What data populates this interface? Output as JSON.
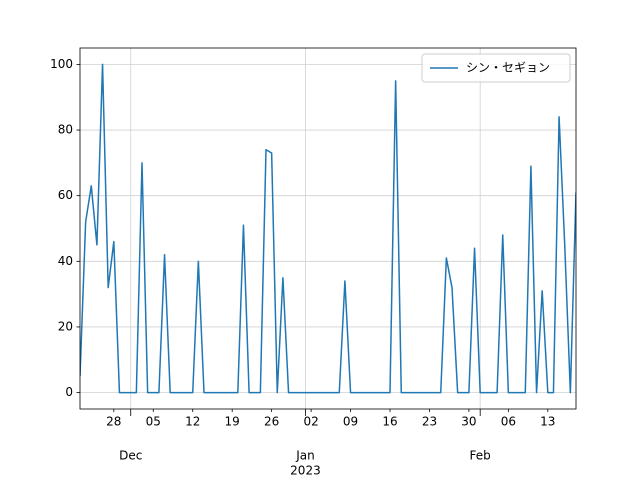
{
  "chart_data": {
    "type": "line",
    "x": [
      "2022-11-22",
      "2022-11-23",
      "2022-11-24",
      "2022-11-25",
      "2022-11-26",
      "2022-11-27",
      "2022-11-28",
      "2022-11-29",
      "2022-11-30",
      "2022-12-01",
      "2022-12-02",
      "2022-12-03",
      "2022-12-04",
      "2022-12-05",
      "2022-12-06",
      "2022-12-07",
      "2022-12-08",
      "2022-12-09",
      "2022-12-10",
      "2022-12-11",
      "2022-12-12",
      "2022-12-13",
      "2022-12-14",
      "2022-12-15",
      "2022-12-16",
      "2022-12-17",
      "2022-12-18",
      "2022-12-19",
      "2022-12-20",
      "2022-12-21",
      "2022-12-22",
      "2022-12-23",
      "2022-12-24",
      "2022-12-25",
      "2022-12-26",
      "2022-12-27",
      "2022-12-28",
      "2022-12-29",
      "2022-12-30",
      "2022-12-31",
      "2023-01-01",
      "2023-01-02",
      "2023-01-03",
      "2023-01-04",
      "2023-01-05",
      "2023-01-06",
      "2023-01-07",
      "2023-01-08",
      "2023-01-09",
      "2023-01-10",
      "2023-01-11",
      "2023-01-12",
      "2023-01-13",
      "2023-01-14",
      "2023-01-15",
      "2023-01-16",
      "2023-01-17",
      "2023-01-18",
      "2023-01-19",
      "2023-01-20",
      "2023-01-21",
      "2023-01-22",
      "2023-01-23",
      "2023-01-24",
      "2023-01-25",
      "2023-01-26",
      "2023-01-27",
      "2023-01-28",
      "2023-01-29",
      "2023-01-30",
      "2023-01-31",
      "2023-02-01",
      "2023-02-02",
      "2023-02-03",
      "2023-02-04",
      "2023-02-05",
      "2023-02-06",
      "2023-02-07",
      "2023-02-08",
      "2023-02-09",
      "2023-02-10",
      "2023-02-11",
      "2023-02-12",
      "2023-02-13",
      "2023-02-14",
      "2023-02-15",
      "2023-02-16",
      "2023-02-17",
      "2023-02-18"
    ],
    "series": [
      {
        "name": "シン・セギョン",
        "color": "#1f77b4",
        "values": [
          5,
          52,
          63,
          45,
          100,
          32,
          46,
          0,
          0,
          0,
          0,
          70,
          0,
          0,
          0,
          42,
          0,
          0,
          0,
          0,
          0,
          40,
          0,
          0,
          0,
          0,
          0,
          0,
          0,
          51,
          0,
          0,
          0,
          74,
          73,
          0,
          35,
          0,
          0,
          0,
          0,
          0,
          0,
          0,
          0,
          0,
          0,
          34,
          0,
          0,
          0,
          0,
          0,
          0,
          0,
          0,
          95,
          0,
          0,
          0,
          0,
          0,
          0,
          0,
          0,
          41,
          32,
          0,
          0,
          0,
          44,
          0,
          0,
          0,
          0,
          48,
          0,
          0,
          0,
          0,
          69,
          0,
          31,
          0,
          0,
          84,
          45,
          0,
          61
        ]
      }
    ],
    "xlim": [
      "2022-11-22",
      "2023-02-18"
    ],
    "xticks": [
      {
        "value": "2022-11-28",
        "label": "28"
      },
      {
        "value": "2022-12-05",
        "label": "05"
      },
      {
        "value": "2022-12-12",
        "label": "12"
      },
      {
        "value": "2022-12-19",
        "label": "19"
      },
      {
        "value": "2022-12-26",
        "label": "26"
      },
      {
        "value": "2023-01-02",
        "label": "02"
      },
      {
        "value": "2023-01-09",
        "label": "09"
      },
      {
        "value": "2023-01-16",
        "label": "16"
      },
      {
        "value": "2023-01-23",
        "label": "23"
      },
      {
        "value": "2023-01-30",
        "label": "30"
      },
      {
        "value": "2023-02-06",
        "label": "06"
      },
      {
        "value": "2023-02-13",
        "label": "13"
      }
    ],
    "x_major_ticks": [
      {
        "value": "2022-12-01",
        "label": "Dec"
      },
      {
        "value": "2023-01-01",
        "label": "Jan",
        "sublabel": "2023"
      },
      {
        "value": "2023-02-01",
        "label": "Feb"
      }
    ],
    "ylim": [
      -5,
      105
    ],
    "yticks": [
      0,
      20,
      40,
      60,
      80,
      100
    ],
    "grid": true,
    "legend": "upper right"
  }
}
